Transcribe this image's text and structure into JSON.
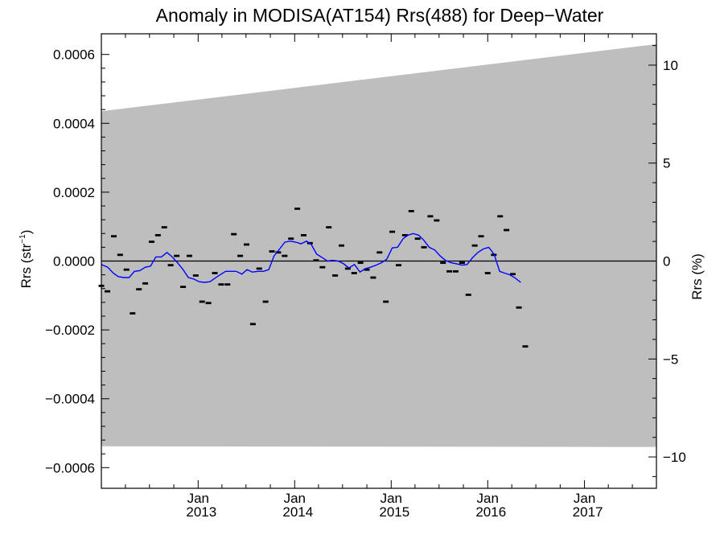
{
  "chart_data": {
    "type": "line",
    "title": "Anomaly in MODISA(AT154) Rrs(488) for Deep−Water",
    "ylabel_left_main": "Rrs (str",
    "ylabel_left_sup": "−1",
    "ylabel_left_end": ")",
    "ylabel_right": "Rrs (%)",
    "x_range": [
      "2012-01-01",
      "2017-09-30"
    ],
    "y_left_range": [
      -0.00066,
      0.00066
    ],
    "y_right_range": [
      -11.6,
      11.6
    ],
    "y_left_ticks": [
      {
        "value": 0.0006,
        "label": "0.0006"
      },
      {
        "value": 0.0004,
        "label": "0.0004"
      },
      {
        "value": 0.0002,
        "label": "0.0002"
      },
      {
        "value": 0.0,
        "label": "0.0000"
      },
      {
        "value": -0.0002,
        "label": "−0.0002"
      },
      {
        "value": -0.0004,
        "label": "−0.0004"
      },
      {
        "value": -0.0006,
        "label": "−0.0006"
      }
    ],
    "y_right_ticks": [
      {
        "value": 10,
        "label": "10"
      },
      {
        "value": 5,
        "label": "5"
      },
      {
        "value": 0,
        "label": "0"
      },
      {
        "value": -5,
        "label": "−5"
      },
      {
        "value": -10,
        "label": "−10"
      }
    ],
    "x_ticks": [
      {
        "date": "2013-01-01",
        "month": "Jan",
        "year": "2013"
      },
      {
        "date": "2014-01-01",
        "month": "Jan",
        "year": "2014"
      },
      {
        "date": "2015-01-01",
        "month": "Jan",
        "year": "2015"
      },
      {
        "date": "2016-01-01",
        "month": "Jan",
        "year": "2016"
      },
      {
        "date": "2017-01-01",
        "month": "Jan",
        "year": "2017"
      }
    ],
    "band": {
      "upper": [
        [
          "2012-01-01",
          0.000435
        ],
        [
          "2017-09-30",
          0.00063
        ]
      ],
      "lower": [
        [
          "2012-01-01",
          -0.000538
        ],
        [
          "2017-09-30",
          -0.00054
        ]
      ],
      "color": "#bebebe"
    },
    "series": [
      {
        "style": "marker",
        "color": "#000000",
        "points": [
          [
            "2012-01-01",
            -7.2e-05
          ],
          [
            "2012-01-24",
            -8.8e-05
          ],
          [
            "2012-02-17",
            7.2e-05
          ],
          [
            "2012-03-12",
            1.8e-05
          ],
          [
            "2012-04-05",
            -2.5e-05
          ],
          [
            "2012-04-28",
            -0.000152
          ],
          [
            "2012-05-22",
            -8.2e-05
          ],
          [
            "2012-06-15",
            -6.5e-05
          ],
          [
            "2012-07-09",
            5.6e-05
          ],
          [
            "2012-08-02",
            7.5e-05
          ],
          [
            "2012-08-26",
            9.8e-05
          ],
          [
            "2012-09-19",
            -1.2e-05
          ],
          [
            "2012-10-12",
            1.5e-05
          ],
          [
            "2012-11-05",
            -7.5e-05
          ],
          [
            "2012-11-29",
            1.5e-05
          ],
          [
            "2012-12-23",
            -4.2e-05
          ],
          [
            "2013-01-16",
            -0.000118
          ],
          [
            "2013-02-09",
            -0.000122
          ],
          [
            "2013-03-05",
            -3.5e-05
          ],
          [
            "2013-03-29",
            -6.8e-05
          ],
          [
            "2013-04-22",
            -6.8e-05
          ],
          [
            "2013-05-16",
            7.8e-05
          ],
          [
            "2013-06-09",
            1.5e-05
          ],
          [
            "2013-07-03",
            4.8e-05
          ],
          [
            "2013-07-27",
            -0.000183
          ],
          [
            "2013-08-20",
            -2.2e-05
          ],
          [
            "2013-09-13",
            -0.000118
          ],
          [
            "2013-10-07",
            2.8e-05
          ],
          [
            "2013-10-31",
            2.5e-05
          ],
          [
            "2013-11-24",
            1.5e-05
          ],
          [
            "2013-12-18",
            6.5e-05
          ],
          [
            "2014-01-11",
            0.000152
          ],
          [
            "2014-02-04",
            7.5e-05
          ],
          [
            "2014-02-28",
            5.2e-05
          ],
          [
            "2014-03-23",
            2e-06
          ],
          [
            "2014-04-16",
            -1.8e-05
          ],
          [
            "2014-05-10",
            9.8e-05
          ],
          [
            "2014-06-03",
            -4.2e-05
          ],
          [
            "2014-06-27",
            4.5e-05
          ],
          [
            "2014-07-21",
            -2.2e-05
          ],
          [
            "2014-08-14",
            -3.5e-05
          ],
          [
            "2014-09-07",
            -5e-06
          ],
          [
            "2014-10-01",
            -2.5e-05
          ],
          [
            "2014-10-25",
            -4.8e-05
          ],
          [
            "2014-11-18",
            2.5e-05
          ],
          [
            "2014-12-12",
            -0.000118
          ],
          [
            "2015-01-05",
            8.5e-05
          ],
          [
            "2015-01-29",
            -1.2e-05
          ],
          [
            "2015-02-22",
            7.5e-05
          ],
          [
            "2015-03-18",
            0.000145
          ],
          [
            "2015-04-11",
            6.5e-05
          ],
          [
            "2015-05-05",
            4e-05
          ],
          [
            "2015-05-29",
            0.00013
          ],
          [
            "2015-06-22",
            0.000118
          ],
          [
            "2015-07-16",
            -5e-06
          ],
          [
            "2015-08-09",
            -3e-05
          ],
          [
            "2015-09-02",
            -3e-05
          ],
          [
            "2015-09-26",
            -5e-06
          ],
          [
            "2015-10-20",
            -9.8e-05
          ],
          [
            "2015-11-13",
            4.5e-05
          ],
          [
            "2015-12-07",
            7.2e-05
          ],
          [
            "2016-01-01",
            -3.5e-05
          ],
          [
            "2016-01-24",
            1.8e-05
          ],
          [
            "2016-02-17",
            0.00013
          ],
          [
            "2016-03-12",
            9e-05
          ],
          [
            "2016-04-05",
            -3.8e-05
          ],
          [
            "2016-04-28",
            -0.000135
          ],
          [
            "2016-05-22",
            -0.000248
          ]
        ]
      },
      {
        "style": "line",
        "color": "#0000ff",
        "points": [
          [
            "2012-01-01",
            -1e-05
          ],
          [
            "2012-01-25",
            -1.8e-05
          ],
          [
            "2012-02-15",
            -3.5e-05
          ],
          [
            "2012-03-05",
            -4.5e-05
          ],
          [
            "2012-03-25",
            -4.8e-05
          ],
          [
            "2012-04-15",
            -4.8e-05
          ],
          [
            "2012-05-05",
            -3e-05
          ],
          [
            "2012-05-25",
            -2.8e-05
          ],
          [
            "2012-06-15",
            -1.8e-05
          ],
          [
            "2012-07-05",
            -1.5e-05
          ],
          [
            "2012-07-25",
            1.2e-05
          ],
          [
            "2012-08-15",
            1.2e-05
          ],
          [
            "2012-09-05",
            2.5e-05
          ],
          [
            "2012-09-25",
            1.2e-05
          ],
          [
            "2012-10-15",
            -5e-06
          ],
          [
            "2012-11-05",
            -2.5e-05
          ],
          [
            "2012-11-25",
            -4.8e-05
          ],
          [
            "2012-12-15",
            -5.2e-05
          ],
          [
            "2013-01-05",
            -6e-05
          ],
          [
            "2013-01-25",
            -6.2e-05
          ],
          [
            "2013-02-15",
            -6e-05
          ],
          [
            "2013-03-05",
            -5e-05
          ],
          [
            "2013-03-25",
            -4e-05
          ],
          [
            "2013-04-15",
            -3e-05
          ],
          [
            "2013-05-05",
            -3e-05
          ],
          [
            "2013-05-25",
            -3e-05
          ],
          [
            "2013-06-15",
            -3.8e-05
          ],
          [
            "2013-07-05",
            -2.5e-05
          ],
          [
            "2013-07-25",
            -3.2e-05
          ],
          [
            "2013-08-15",
            -3e-05
          ],
          [
            "2013-09-05",
            -3e-05
          ],
          [
            "2013-09-25",
            -2.5e-05
          ],
          [
            "2013-10-15",
            1.5e-05
          ],
          [
            "2013-11-05",
            3.5e-05
          ],
          [
            "2013-11-25",
            5.5e-05
          ],
          [
            "2013-12-15",
            5.8e-05
          ],
          [
            "2014-01-05",
            5.5e-05
          ],
          [
            "2014-01-25",
            5e-05
          ],
          [
            "2014-02-15",
            5.8e-05
          ],
          [
            "2014-03-05",
            4.8e-05
          ],
          [
            "2014-03-25",
            2e-05
          ],
          [
            "2014-04-15",
            1e-05
          ],
          [
            "2014-05-05",
            0.0
          ],
          [
            "2014-05-25",
            2e-06
          ],
          [
            "2014-06-15",
            0.0
          ],
          [
            "2014-07-05",
            -8e-06
          ],
          [
            "2014-07-25",
            -2e-05
          ],
          [
            "2014-08-15",
            -1e-05
          ],
          [
            "2014-09-05",
            -3.2e-05
          ],
          [
            "2014-09-25",
            -2.2e-05
          ],
          [
            "2014-10-15",
            -1.8e-05
          ],
          [
            "2014-11-05",
            -1.2e-05
          ],
          [
            "2014-11-25",
            -5e-06
          ],
          [
            "2014-12-15",
            5e-06
          ],
          [
            "2015-01-05",
            3.8e-05
          ],
          [
            "2015-01-25",
            4e-05
          ],
          [
            "2015-02-15",
            6.5e-05
          ],
          [
            "2015-03-05",
            7.5e-05
          ],
          [
            "2015-03-25",
            8e-05
          ],
          [
            "2015-04-15",
            7.5e-05
          ],
          [
            "2015-05-05",
            6e-05
          ],
          [
            "2015-05-25",
            4e-05
          ],
          [
            "2015-06-15",
            3.2e-05
          ],
          [
            "2015-07-05",
            1.5e-05
          ],
          [
            "2015-07-25",
            2e-06
          ],
          [
            "2015-08-15",
            -5e-06
          ],
          [
            "2015-09-05",
            -8e-06
          ],
          [
            "2015-09-25",
            -1.2e-05
          ],
          [
            "2015-10-15",
            -1e-05
          ],
          [
            "2015-11-05",
            1e-05
          ],
          [
            "2015-11-25",
            2.5e-05
          ],
          [
            "2015-12-15",
            3.5e-05
          ],
          [
            "2016-01-05",
            4e-05
          ],
          [
            "2016-01-25",
            2e-05
          ],
          [
            "2016-02-15",
            -3e-05
          ],
          [
            "2016-03-05",
            -3.5e-05
          ],
          [
            "2016-03-25",
            -4e-05
          ],
          [
            "2016-04-15",
            -5e-05
          ],
          [
            "2016-05-05",
            -6.2e-05
          ]
        ]
      }
    ]
  }
}
